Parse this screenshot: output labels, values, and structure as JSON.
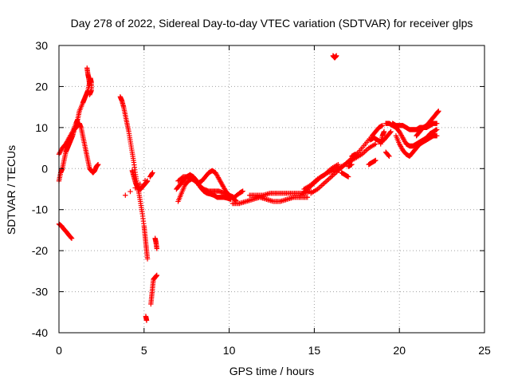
{
  "chart_data": {
    "type": "scatter",
    "title": "Day 278 of 2022, Sidereal Day-to-day VTEC variation (SDTVAR) for receiver glps",
    "xlabel": "GPS time / hours",
    "ylabel": "SDTVAR / TECUs",
    "xlim": [
      0,
      25
    ],
    "ylim": [
      -40,
      30
    ],
    "xticks": [
      0,
      5,
      10,
      15,
      20,
      25
    ],
    "yticks": [
      -40,
      -30,
      -20,
      -10,
      0,
      10,
      20,
      30
    ],
    "grid": true,
    "marker": "+",
    "color": "#ff0000",
    "tracks": [
      {
        "name": "track-1",
        "points": [
          [
            0.0,
            3.5
          ],
          [
            0.2,
            5
          ],
          [
            0.4,
            6
          ],
          [
            0.6,
            7.5
          ],
          [
            0.8,
            9
          ],
          [
            1.0,
            11
          ],
          [
            1.1,
            12
          ],
          [
            1.2,
            14
          ],
          [
            1.4,
            16
          ],
          [
            1.5,
            17
          ],
          [
            1.6,
            18
          ],
          [
            1.7,
            19
          ],
          [
            1.8,
            21
          ],
          [
            1.85,
            22
          ],
          [
            1.9,
            21
          ],
          [
            1.9,
            19
          ],
          [
            1.8,
            18
          ]
        ]
      },
      {
        "name": "track-2",
        "points": [
          [
            0.0,
            -3
          ],
          [
            0.1,
            -1
          ],
          [
            0.2,
            0
          ],
          [
            0.3,
            2
          ],
          [
            0.4,
            4
          ],
          [
            0.5,
            5
          ],
          [
            0.6,
            6
          ],
          [
            0.7,
            7
          ],
          [
            0.8,
            8
          ],
          [
            0.9,
            9.5
          ],
          [
            1.0,
            10
          ],
          [
            1.1,
            11
          ],
          [
            1.2,
            11
          ],
          [
            1.3,
            10
          ],
          [
            1.4,
            8
          ],
          [
            1.5,
            6
          ],
          [
            1.6,
            4
          ],
          [
            1.7,
            2
          ],
          [
            1.8,
            0
          ],
          [
            1.9,
            -0.5
          ],
          [
            2.0,
            -1
          ],
          [
            2.1,
            -0.5
          ],
          [
            2.2,
            0.5
          ],
          [
            2.3,
            1
          ]
        ]
      },
      {
        "name": "track-3",
        "points": [
          [
            1.65,
            24.5
          ],
          [
            1.7,
            23
          ],
          [
            1.75,
            22
          ],
          [
            1.8,
            20.5
          ]
        ]
      },
      {
        "name": "track-4",
        "points": [
          [
            0.0,
            -13.5
          ],
          [
            0.15,
            -14
          ],
          [
            0.3,
            -14.8
          ],
          [
            0.45,
            -15.5
          ],
          [
            0.6,
            -16.3
          ],
          [
            0.75,
            -17
          ]
        ]
      },
      {
        "name": "track-5",
        "points": [
          [
            3.6,
            17.5
          ],
          [
            3.7,
            16.5
          ],
          [
            3.8,
            15
          ],
          [
            3.9,
            13
          ],
          [
            4.0,
            11
          ],
          [
            4.1,
            9
          ],
          [
            4.2,
            6.5
          ],
          [
            4.3,
            4
          ],
          [
            4.4,
            1.5
          ],
          [
            4.5,
            -1.5
          ],
          [
            4.6,
            -4
          ],
          [
            4.7,
            -6
          ],
          [
            4.8,
            -8.5
          ],
          [
            4.9,
            -11
          ],
          [
            5.0,
            -14
          ],
          [
            5.05,
            -16
          ],
          [
            5.1,
            -18
          ],
          [
            5.15,
            -20
          ],
          [
            5.2,
            -22
          ]
        ]
      },
      {
        "name": "track-6",
        "points": [
          [
            4.3,
            -0.5
          ],
          [
            4.4,
            -2
          ],
          [
            4.5,
            -3.5
          ],
          [
            4.6,
            -4.5
          ],
          [
            4.7,
            -5
          ],
          [
            4.8,
            -5
          ],
          [
            4.9,
            -4.5
          ],
          [
            5.0,
            -4
          ],
          [
            5.1,
            -3.5
          ],
          [
            5.2,
            -3
          ]
        ]
      },
      {
        "name": "track-7",
        "points": [
          [
            3.9,
            -6.5
          ],
          [
            5.35,
            -2
          ],
          [
            5.5,
            -1
          ]
        ]
      },
      {
        "name": "track-8",
        "points": [
          [
            5.1,
            -36
          ],
          [
            5.15,
            -37
          ]
        ]
      },
      {
        "name": "track-9",
        "points": [
          [
            5.4,
            -33
          ],
          [
            5.45,
            -31
          ],
          [
            5.5,
            -29
          ],
          [
            5.55,
            -27
          ],
          [
            5.65,
            -26.5
          ],
          [
            5.75,
            -26
          ]
        ]
      },
      {
        "name": "track-10",
        "points": [
          [
            5.65,
            -17
          ],
          [
            5.7,
            -18
          ],
          [
            5.75,
            -19.5
          ]
        ]
      },
      {
        "name": "track-11",
        "points": [
          [
            7.0,
            -8
          ],
          [
            7.2,
            -6
          ],
          [
            7.4,
            -4
          ],
          [
            7.6,
            -3
          ],
          [
            7.8,
            -2.5
          ],
          [
            8.0,
            -3
          ],
          [
            8.2,
            -3.5
          ],
          [
            8.4,
            -3
          ],
          [
            8.6,
            -2
          ],
          [
            8.8,
            -1
          ],
          [
            9.0,
            -0.5
          ],
          [
            9.2,
            -1
          ],
          [
            9.4,
            -2.5
          ],
          [
            9.6,
            -4
          ],
          [
            9.8,
            -5.5
          ],
          [
            10.0,
            -6.5
          ],
          [
            10.2,
            -7.2
          ],
          [
            10.4,
            -7.8
          ]
        ]
      },
      {
        "name": "track-12",
        "points": [
          [
            6.9,
            -5
          ],
          [
            7.1,
            -4
          ],
          [
            7.3,
            -3
          ],
          [
            7.5,
            -2
          ],
          [
            7.7,
            -1.5
          ],
          [
            7.9,
            -2
          ],
          [
            8.1,
            -3
          ],
          [
            8.3,
            -4.5
          ],
          [
            8.5,
            -5.5
          ],
          [
            8.7,
            -6
          ],
          [
            8.9,
            -6.2
          ],
          [
            9.1,
            -6.5
          ],
          [
            9.3,
            -7
          ],
          [
            9.5,
            -7
          ],
          [
            9.7,
            -7
          ],
          [
            9.9,
            -7.2
          ],
          [
            10.1,
            -7.5
          ]
        ]
      },
      {
        "name": "track-13",
        "points": [
          [
            7.0,
            -3
          ],
          [
            7.3,
            -2
          ],
          [
            7.6,
            -2
          ],
          [
            7.9,
            -2.5
          ],
          [
            8.2,
            -4
          ],
          [
            8.5,
            -5
          ],
          [
            8.8,
            -5.5
          ],
          [
            9.1,
            -5.5
          ],
          [
            9.4,
            -5.5
          ],
          [
            9.7,
            -6
          ],
          [
            10.0,
            -6.5
          ],
          [
            10.3,
            -7
          ],
          [
            10.6,
            -6
          ],
          [
            10.8,
            -5.5
          ]
        ]
      },
      {
        "name": "track-14",
        "points": [
          [
            10.2,
            -8.5
          ],
          [
            10.6,
            -8.5
          ],
          [
            11.0,
            -8
          ],
          [
            11.4,
            -7.5
          ],
          [
            11.8,
            -7
          ],
          [
            12.2,
            -7.5
          ],
          [
            12.6,
            -8
          ],
          [
            13.0,
            -8
          ],
          [
            13.4,
            -7.5
          ],
          [
            13.8,
            -7
          ],
          [
            14.2,
            -7
          ],
          [
            14.6,
            -7
          ]
        ]
      },
      {
        "name": "track-15",
        "points": [
          [
            11.2,
            -6.5
          ],
          [
            11.6,
            -6.5
          ],
          [
            12.0,
            -6.5
          ],
          [
            12.4,
            -6
          ],
          [
            12.8,
            -6
          ],
          [
            13.2,
            -6
          ],
          [
            13.6,
            -6
          ],
          [
            14.0,
            -6
          ],
          [
            14.4,
            -6
          ],
          [
            14.8,
            -5.5
          ]
        ]
      },
      {
        "name": "track-16",
        "points": [
          [
            14.2,
            -6.5
          ],
          [
            14.6,
            -5
          ],
          [
            15.0,
            -3.5
          ],
          [
            15.4,
            -2
          ],
          [
            15.8,
            -1
          ],
          [
            16.2,
            -0.5
          ],
          [
            16.6,
            0.5
          ],
          [
            17.0,
            1.5
          ],
          [
            17.4,
            2.5
          ],
          [
            17.8,
            3.5
          ],
          [
            18.2,
            5
          ],
          [
            18.6,
            6
          ]
        ]
      },
      {
        "name": "track-17",
        "points": [
          [
            14.8,
            -6
          ],
          [
            15.2,
            -5
          ],
          [
            15.6,
            -3.5
          ],
          [
            16.0,
            -2
          ],
          [
            16.4,
            -0.5
          ],
          [
            16.8,
            1
          ],
          [
            17.2,
            2.5
          ],
          [
            17.6,
            4
          ],
          [
            18.0,
            6
          ],
          [
            18.4,
            8
          ],
          [
            18.6,
            9
          ],
          [
            18.8,
            10
          ],
          [
            19.0,
            10.5
          ]
        ]
      },
      {
        "name": "track-18",
        "points": [
          [
            14.4,
            -5
          ],
          [
            14.8,
            -4
          ],
          [
            15.2,
            -2.5
          ],
          [
            15.6,
            -1.5
          ],
          [
            16.0,
            0
          ],
          [
            16.4,
            1
          ]
        ]
      },
      {
        "name": "track-19",
        "points": [
          [
            16.1,
            27.5
          ],
          [
            16.2,
            27
          ],
          [
            16.3,
            27.5
          ]
        ]
      },
      {
        "name": "track-20",
        "points": [
          [
            16.6,
            -1
          ],
          [
            16.8,
            -1.5
          ],
          [
            17.0,
            -2
          ]
        ]
      },
      {
        "name": "track-21",
        "points": [
          [
            17.0,
            0.5
          ],
          [
            17.2,
            1
          ]
        ]
      },
      {
        "name": "track-22",
        "points": [
          [
            17.2,
            3
          ],
          [
            17.4,
            3.5
          ]
        ]
      },
      {
        "name": "track-23",
        "points": [
          [
            18.3,
            7
          ],
          [
            18.5,
            7.5
          ],
          [
            18.7,
            7
          ],
          [
            18.9,
            6.5
          ],
          [
            19.1,
            7
          ],
          [
            19.3,
            8
          ],
          [
            19.5,
            9
          ]
        ]
      },
      {
        "name": "track-24",
        "points": [
          [
            18.2,
            1
          ],
          [
            18.4,
            1.5
          ],
          [
            18.6,
            2
          ]
        ]
      },
      {
        "name": "track-25",
        "points": [
          [
            18.9,
            6
          ],
          [
            19.0,
            8
          ],
          [
            19.1,
            9
          ]
        ]
      },
      {
        "name": "track-26",
        "points": [
          [
            19.2,
            4
          ],
          [
            19.4,
            3
          ]
        ]
      },
      {
        "name": "track-27",
        "points": [
          [
            19.2,
            11
          ],
          [
            19.4,
            11
          ],
          [
            19.6,
            10.5
          ],
          [
            19.8,
            10
          ],
          [
            20.0,
            9
          ],
          [
            20.2,
            7.5
          ],
          [
            20.4,
            6
          ],
          [
            20.6,
            5.5
          ],
          [
            20.8,
            5.5
          ],
          [
            21.0,
            6
          ],
          [
            21.2,
            6.5
          ],
          [
            21.4,
            7
          ],
          [
            21.6,
            7.5
          ],
          [
            21.8,
            8.5
          ],
          [
            22.0,
            9
          ],
          [
            22.2,
            9.5
          ]
        ]
      },
      {
        "name": "track-28",
        "points": [
          [
            19.6,
            11
          ],
          [
            19.8,
            10.5
          ],
          [
            20.0,
            10.5
          ],
          [
            20.2,
            10.5
          ],
          [
            20.4,
            10
          ],
          [
            20.6,
            9.5
          ],
          [
            20.8,
            9.5
          ],
          [
            21.0,
            9.5
          ],
          [
            21.2,
            10
          ],
          [
            21.4,
            10
          ],
          [
            21.6,
            10
          ],
          [
            21.8,
            10.5
          ],
          [
            22.0,
            11
          ],
          [
            22.2,
            11
          ]
        ]
      },
      {
        "name": "track-29",
        "points": [
          [
            19.8,
            8
          ],
          [
            20.0,
            6
          ],
          [
            20.2,
            4.5
          ],
          [
            20.4,
            3.5
          ],
          [
            20.6,
            3
          ],
          [
            20.8,
            4
          ],
          [
            21.0,
            5
          ],
          [
            21.2,
            6
          ],
          [
            21.4,
            6.5
          ],
          [
            21.6,
            7
          ],
          [
            21.8,
            7.5
          ],
          [
            22.0,
            8
          ],
          [
            22.2,
            8
          ]
        ]
      },
      {
        "name": "track-30",
        "points": [
          [
            21.0,
            8
          ],
          [
            21.2,
            9
          ],
          [
            21.4,
            10
          ],
          [
            21.6,
            10.5
          ],
          [
            21.8,
            11.5
          ],
          [
            22.0,
            12.5
          ],
          [
            22.2,
            13.5
          ],
          [
            22.3,
            14
          ]
        ]
      }
    ]
  }
}
